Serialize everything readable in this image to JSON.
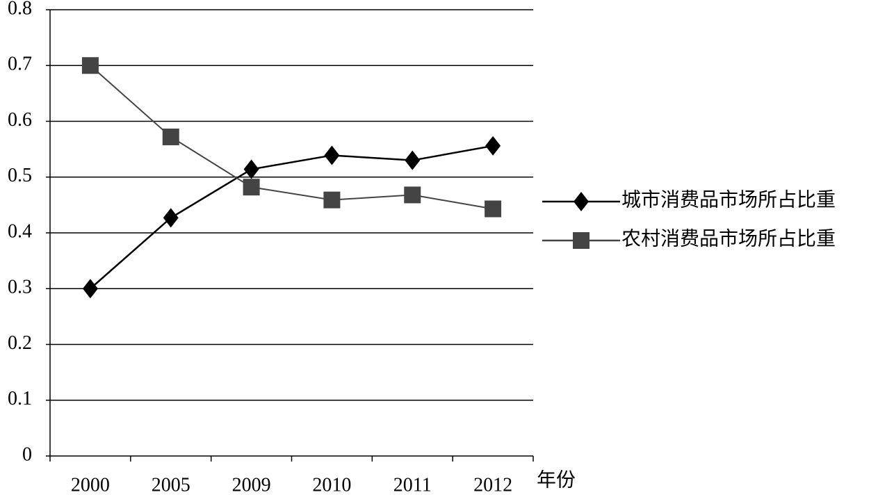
{
  "chart_data": {
    "type": "line",
    "x_label": "年份",
    "categories": [
      "2000",
      "2005",
      "2009",
      "2010",
      "2011",
      "2012"
    ],
    "series": [
      {
        "name": "城市消费品市场所占比重",
        "color": "#000000",
        "marker": "diamond",
        "values": [
          0.3,
          0.427,
          0.514,
          0.539,
          0.53,
          0.556
        ]
      },
      {
        "name": "农村消费品市场所占比重",
        "color": "#444444",
        "marker": "square",
        "values": [
          0.7,
          0.572,
          0.482,
          0.459,
          0.468,
          0.443
        ]
      }
    ],
    "ylim": [
      0,
      0.8
    ],
    "yticks": [
      0,
      0.1,
      0.2,
      0.3,
      0.4,
      0.5,
      0.6,
      0.7,
      0.8
    ],
    "grid": true,
    "legend": "right"
  }
}
